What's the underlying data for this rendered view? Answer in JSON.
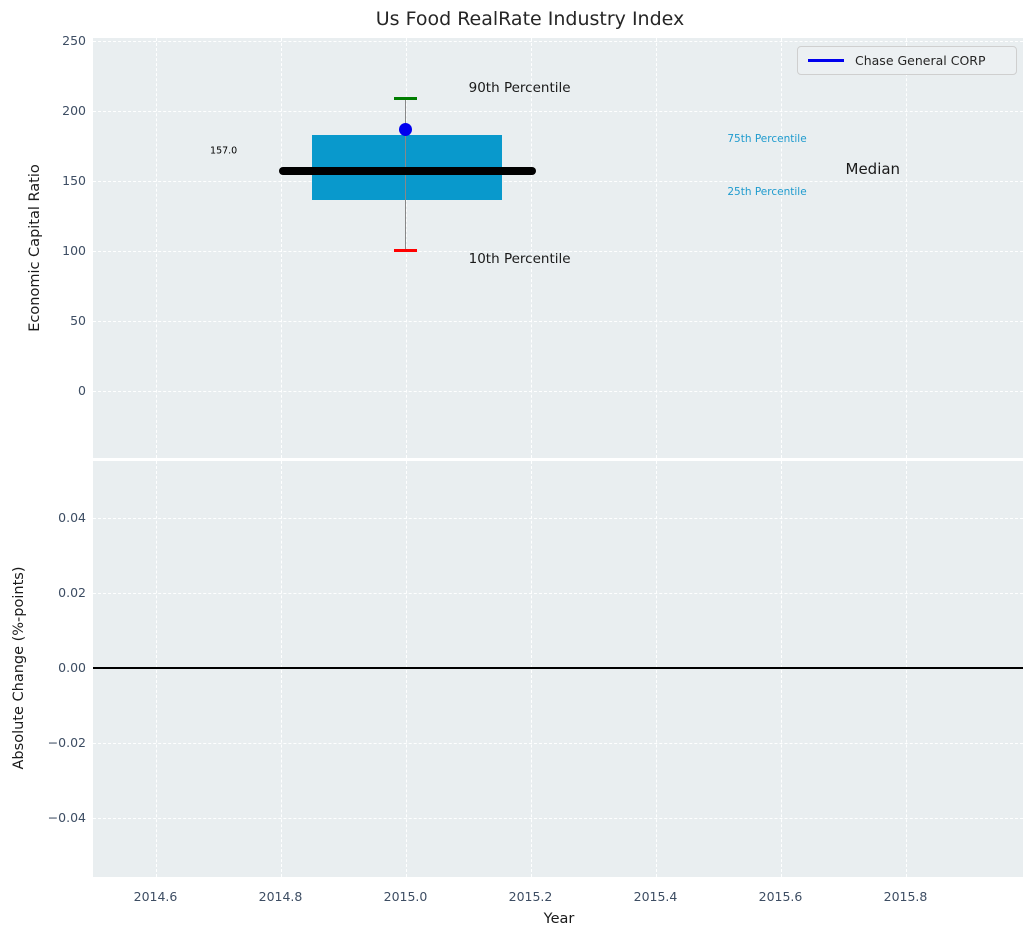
{
  "title": "Us Food RealRate Industry Index",
  "xlabel": "Year",
  "legend": {
    "label": "Chase General CORP",
    "line_color": "#0000ee"
  },
  "colors": {
    "box_fill": "#0999cc",
    "median_line": "#000000",
    "whisker": "#888888",
    "p90_cap": "#007d00",
    "p10_cap": "#ff0000",
    "company_marker": "#0000ee",
    "plot_bg": "#e9eef0",
    "grid": "#ffffff",
    "tick_text": "#3d4d63",
    "label_text": "#1a1a1a",
    "percentile_text": "#1f9bce",
    "zero_line": "#000000"
  },
  "xticks": [
    {
      "value": 2014.6,
      "label": "2014.6"
    },
    {
      "value": 2014.8,
      "label": "2014.8"
    },
    {
      "value": 2015.0,
      "label": "2015.0"
    },
    {
      "value": 2015.2,
      "label": "2015.2"
    },
    {
      "value": 2015.4,
      "label": "2015.4"
    },
    {
      "value": 2015.6,
      "label": "2015.6"
    },
    {
      "value": 2015.8,
      "label": "2015.8"
    }
  ],
  "chart_data": [
    {
      "type": "boxplot",
      "title": "Us Food RealRate Industry Index",
      "ylabel": "Economic Capital Ratio",
      "xlabel": "Year",
      "ylim": [
        -48,
        252
      ],
      "xlim": [
        2014.5,
        2015.988
      ],
      "grid": "white dashed, on",
      "legend_position": "upper right",
      "yticks": [
        {
          "value": 0,
          "label": "0"
        },
        {
          "value": 50,
          "label": "50"
        },
        {
          "value": 100,
          "label": "100"
        },
        {
          "value": 150,
          "label": "150"
        },
        {
          "value": 200,
          "label": "200"
        },
        {
          "value": 250,
          "label": "250"
        }
      ],
      "box": {
        "x_center": 2015.0,
        "box_x_range": [
          2014.85,
          2015.155
        ],
        "median_x_range": [
          2014.797,
          2015.208
        ],
        "cap_half_width": 0.018,
        "p90": 209,
        "p75": 183,
        "median": 157,
        "p25": 136,
        "p10": 100
      },
      "company_point": {
        "name": "Chase General CORP",
        "x": 2015.0,
        "y": 187
      },
      "annotations": [
        {
          "text": "90th Percentile",
          "x": 2015.101,
          "y": 216,
          "color": "#1a1a1a",
          "size": 13.5,
          "align": "left"
        },
        {
          "text": "10th Percentile",
          "x": 2015.101,
          "y": 94,
          "color": "#1a1a1a",
          "size": 13.5,
          "align": "left"
        },
        {
          "text": "157.0",
          "x": 2014.709,
          "y": 171,
          "color": "#000000",
          "size": 9.5,
          "align": "center"
        },
        {
          "text": "75th Percentile",
          "x": 2015.515,
          "y": 180,
          "color": "#1f9bce",
          "size": 10.5,
          "align": "left"
        },
        {
          "text": "Median",
          "x": 2015.704,
          "y": 158.5,
          "color": "#1a1a1a",
          "size": 15,
          "align": "left"
        },
        {
          "text": "25th Percentile",
          "x": 2015.515,
          "y": 142,
          "color": "#1f9bce",
          "size": 10.5,
          "align": "left"
        }
      ]
    },
    {
      "type": "line",
      "ylabel": "Absolute Change (%-points)",
      "ylim": [
        -0.0557,
        0.0552
      ],
      "xlim": [
        2014.5,
        2015.988
      ],
      "grid": "white dashed, on",
      "yticks": [
        {
          "value": 0.04,
          "label": "0.04"
        },
        {
          "value": 0.02,
          "label": "0.02"
        },
        {
          "value": 0.0,
          "label": "0.00"
        },
        {
          "value": -0.02,
          "label": "−0.02"
        },
        {
          "value": -0.04,
          "label": "−0.04"
        }
      ],
      "zero_line_y": 0.0,
      "series": []
    }
  ]
}
